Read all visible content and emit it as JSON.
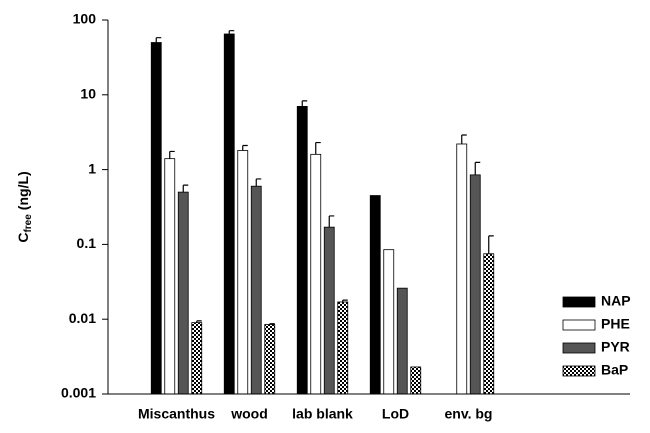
{
  "chart_data": {
    "type": "bar",
    "ylabel": {
      "main": "C",
      "sub": "free",
      "unit": "(ng/L)"
    },
    "categories": [
      "Miscanthus",
      "wood",
      "lab blank",
      "LoD",
      "env. bg"
    ],
    "series": [
      {
        "name": "NAP",
        "color": "#000000",
        "values": [
          50,
          65,
          7,
          0.45,
          null
        ],
        "errors": [
          8,
          7,
          1.3,
          null,
          null
        ]
      },
      {
        "name": "PHE",
        "color": "#ffffff",
        "values": [
          1.4,
          1.8,
          1.6,
          0.085,
          2.2
        ],
        "errors": [
          0.35,
          0.3,
          0.7,
          null,
          0.7
        ]
      },
      {
        "name": "PYR",
        "color": "#555555",
        "values": [
          0.5,
          0.6,
          0.17,
          0.026,
          0.85
        ],
        "errors": [
          0.12,
          0.15,
          0.07,
          null,
          0.4
        ]
      },
      {
        "name": "BaP",
        "color": "#888888",
        "pattern": "checker",
        "values": [
          0.009,
          0.0085,
          0.017,
          0.0023,
          0.075
        ],
        "errors": [
          0.0005,
          0.0002,
          0.001,
          null,
          0.055
        ]
      }
    ],
    "log_y": true,
    "ylim": [
      0.001,
      100
    ],
    "yticks": [
      0.001,
      0.01,
      0.1,
      1,
      10,
      100
    ],
    "legend": "lower right"
  }
}
